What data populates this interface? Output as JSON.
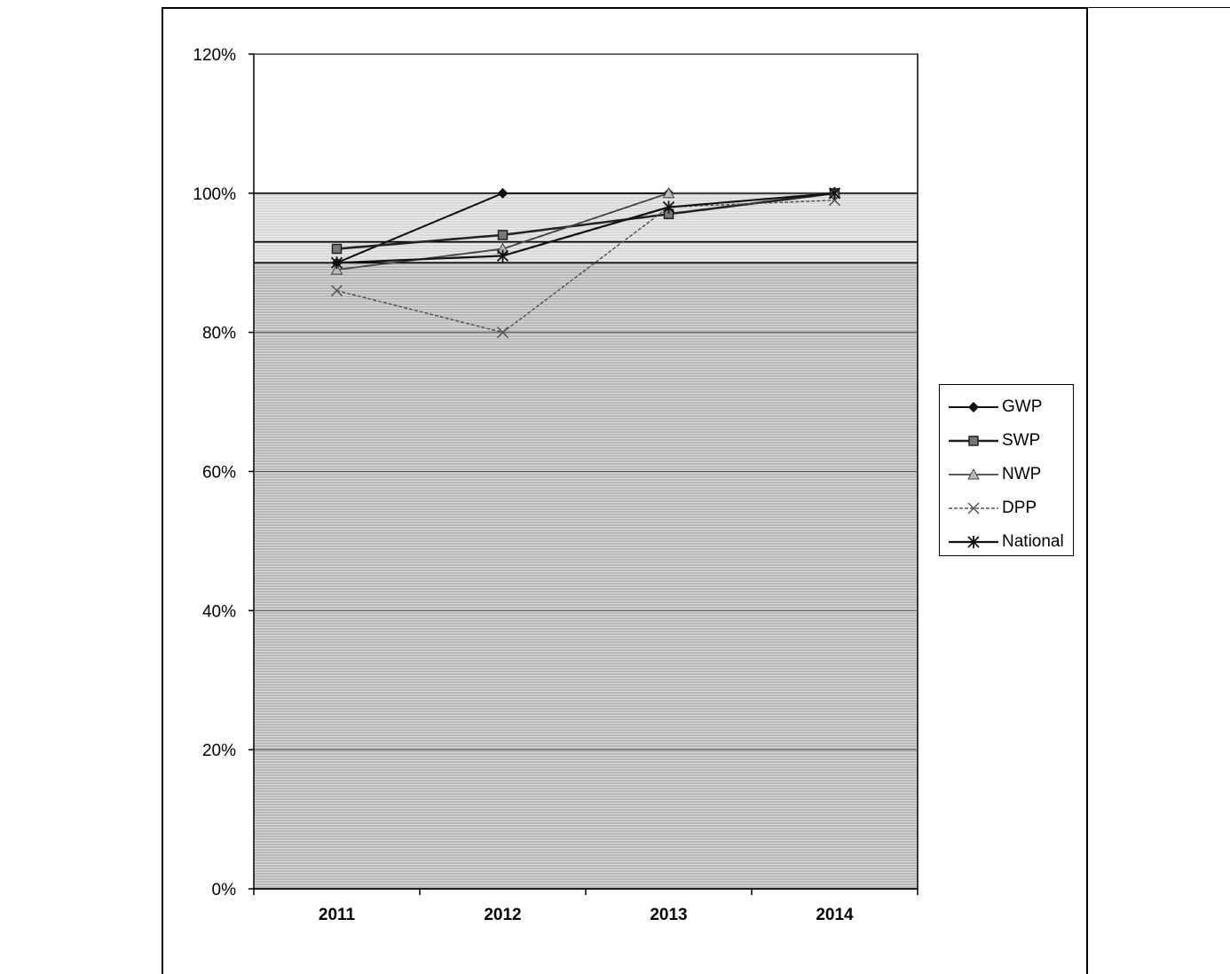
{
  "chart_data": {
    "type": "line",
    "categories": [
      "2011",
      "2012",
      "2013",
      "2014"
    ],
    "yaxis": {
      "min": 0,
      "max": 1.2,
      "ticks": [
        0,
        0.2,
        0.4,
        0.6,
        0.8,
        1.0,
        1.2
      ],
      "tick_labels": [
        "0%",
        "20%",
        "40%",
        "60%",
        "80%",
        "100%",
        "120%"
      ]
    },
    "ylim": [
      0,
      1.2
    ],
    "reference_lines": [
      0.9,
      0.93,
      1.0
    ],
    "grid": true,
    "legend_position": "right",
    "series": [
      {
        "name": "GWP",
        "marker": "diamond",
        "values": [
          0.9,
          1.0,
          1.0,
          1.0
        ]
      },
      {
        "name": "SWP",
        "marker": "square",
        "values": [
          0.92,
          0.94,
          0.97,
          1.0
        ]
      },
      {
        "name": "NWP",
        "marker": "triangle",
        "values": [
          0.89,
          0.92,
          1.0,
          1.0
        ]
      },
      {
        "name": "DPP",
        "marker": "x",
        "values": [
          0.86,
          0.8,
          0.98,
          0.99
        ]
      },
      {
        "name": "National",
        "marker": "star",
        "values": [
          0.9,
          0.91,
          0.98,
          1.0
        ]
      }
    ]
  },
  "legend": {
    "items": [
      "GWP",
      "SWP",
      "NWP",
      "DPP",
      "National"
    ]
  }
}
